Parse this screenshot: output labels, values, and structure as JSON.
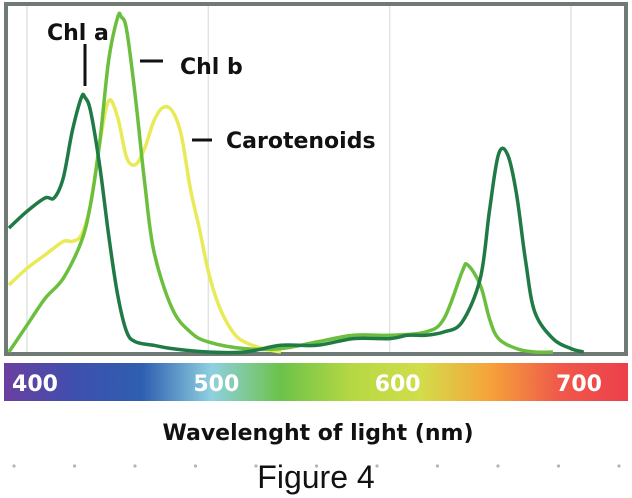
{
  "chart_data": {
    "type": "line",
    "title": "",
    "xlabel": "Wavelenght of light (nm)",
    "ylabel": "",
    "xlim": [
      390,
      710
    ],
    "ylim": [
      0,
      1
    ],
    "grid": true,
    "x_ticks": [
      400,
      500,
      600,
      700
    ],
    "series": [
      {
        "name": "Chl a",
        "color": "#1f7a45",
        "x": [
          390,
          400,
          410,
          415,
          420,
          425,
          430,
          432,
          435,
          440,
          445,
          450,
          455,
          460,
          470,
          480,
          500,
          520,
          540,
          560,
          580,
          600,
          610,
          620,
          630,
          640,
          650,
          655,
          660,
          665,
          670,
          675,
          680,
          690,
          700,
          707
        ],
        "y": [
          0.37,
          0.42,
          0.46,
          0.46,
          0.52,
          0.66,
          0.76,
          0.76,
          0.72,
          0.56,
          0.35,
          0.17,
          0.06,
          0.03,
          0.02,
          0.01,
          0.0,
          0.0,
          0.02,
          0.02,
          0.04,
          0.04,
          0.05,
          0.05,
          0.06,
          0.09,
          0.22,
          0.42,
          0.59,
          0.59,
          0.47,
          0.27,
          0.12,
          0.04,
          0.01,
          0.0
        ]
      },
      {
        "name": "Chl b",
        "color": "#6cbf3e",
        "x": [
          390,
          400,
          410,
          420,
          430,
          435,
          440,
          445,
          450,
          452,
          455,
          460,
          465,
          470,
          480,
          490,
          500,
          520,
          540,
          560,
          580,
          600,
          620,
          630,
          640,
          643,
          650,
          655,
          660,
          670,
          680,
          690
        ],
        "y": [
          0.0,
          0.08,
          0.16,
          0.22,
          0.33,
          0.44,
          0.62,
          0.87,
          1.0,
          1.0,
          0.96,
          0.75,
          0.5,
          0.3,
          0.13,
          0.06,
          0.03,
          0.01,
          0.01,
          0.03,
          0.05,
          0.05,
          0.06,
          0.1,
          0.24,
          0.26,
          0.2,
          0.1,
          0.04,
          0.01,
          0.0,
          0.0
        ]
      },
      {
        "name": "Carotenoids",
        "color": "#e8ea57",
        "x": [
          390,
          400,
          410,
          420,
          425,
          430,
          435,
          440,
          445,
          450,
          455,
          460,
          465,
          470,
          475,
          480,
          485,
          490,
          495,
          500,
          505,
          510,
          515,
          520,
          530,
          540
        ],
        "y": [
          0.2,
          0.25,
          0.29,
          0.33,
          0.33,
          0.35,
          0.44,
          0.62,
          0.75,
          0.7,
          0.58,
          0.56,
          0.61,
          0.69,
          0.73,
          0.72,
          0.65,
          0.49,
          0.37,
          0.24,
          0.15,
          0.09,
          0.05,
          0.03,
          0.01,
          0.0
        ]
      }
    ],
    "spectrum_gradient": [
      "#6b3fa0",
      "#3f4fae",
      "#2e5fb0",
      "#8fd0e0",
      "#6cc24a",
      "#b5d843",
      "#d2dd4a",
      "#f6a33a",
      "#ef5a4a",
      "#ec3f4b"
    ]
  },
  "caption": "Figure 4"
}
